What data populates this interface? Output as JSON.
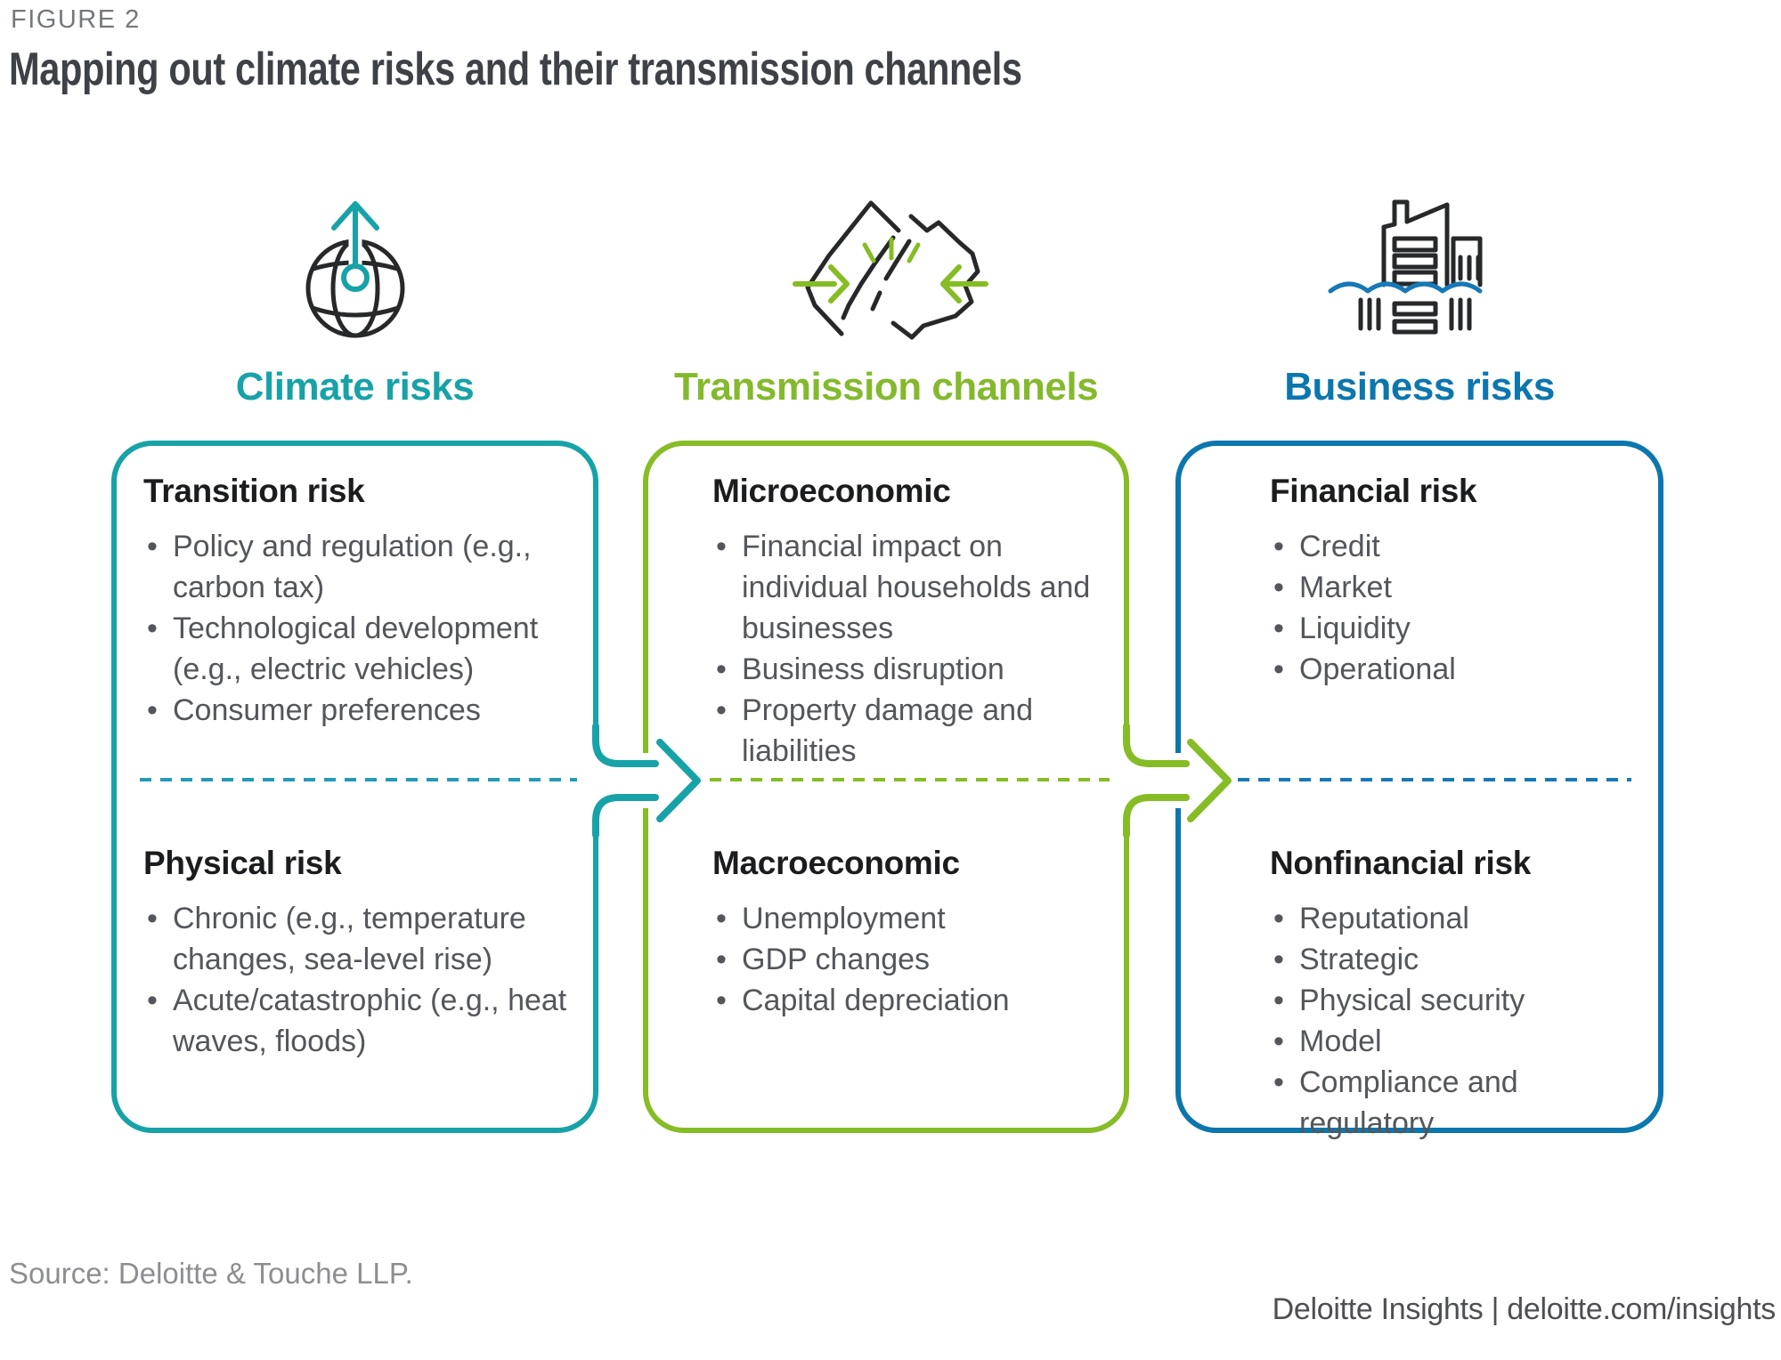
{
  "figure_label": "FIGURE 2",
  "title": "Mapping out climate risks and their transmission channels",
  "palette": {
    "teal": "#17A2A8",
    "green": "#86BC25",
    "blue": "#0C76AE",
    "heading_dark": "#1B1C1E",
    "body_gray": "#53565A",
    "label_gray": "#75787B",
    "source_gray": "#8C8E91",
    "icon_line": "#26282A",
    "water_blue": "#1878B8"
  },
  "columns": [
    {
      "id": "climate-risks",
      "header": "Climate risks",
      "icon": "globe-up-arrow-icon",
      "accent": "#17A2A8",
      "sections": [
        {
          "heading": "Transition risk",
          "bullets": [
            "Policy and regulation (e.g., carbon tax)",
            "Technological development (e.g., electric vehicles)",
            "Consumer preferences"
          ]
        },
        {
          "heading": "Physical risk",
          "bullets": [
            "Chronic (e.g., temperature changes, sea-level rise)",
            "Acute/catastrophic (e.g., heat waves, floods)"
          ]
        }
      ]
    },
    {
      "id": "transmission-channels",
      "header": "Transmission channels",
      "icon": "cracked-ground-converging-arrows-icon",
      "accent": "#86BC25",
      "sections": [
        {
          "heading": "Microeconomic",
          "bullets": [
            "Financial impact on individual households and businesses",
            "Business disruption",
            "Property damage and liabilities"
          ]
        },
        {
          "heading": "Macroeconomic",
          "bullets": [
            "Unemployment",
            "GDP changes",
            "Capital depreciation"
          ]
        }
      ]
    },
    {
      "id": "business-risks",
      "header": "Business risks",
      "icon": "flooded-building-icon",
      "accent": "#0C76AE",
      "sections": [
        {
          "heading": "Financial risk",
          "bullets": [
            "Credit",
            "Market",
            "Liquidity",
            "Operational"
          ]
        },
        {
          "heading": "Nonfinancial risk",
          "bullets": [
            "Reputational",
            "Strategic",
            "Physical security",
            "Model",
            "Compliance and regulatory"
          ]
        }
      ]
    }
  ],
  "footer": {
    "source": "Source: Deloitte & Touche LLP.",
    "branding": "Deloitte Insights | deloitte.com/insights"
  }
}
